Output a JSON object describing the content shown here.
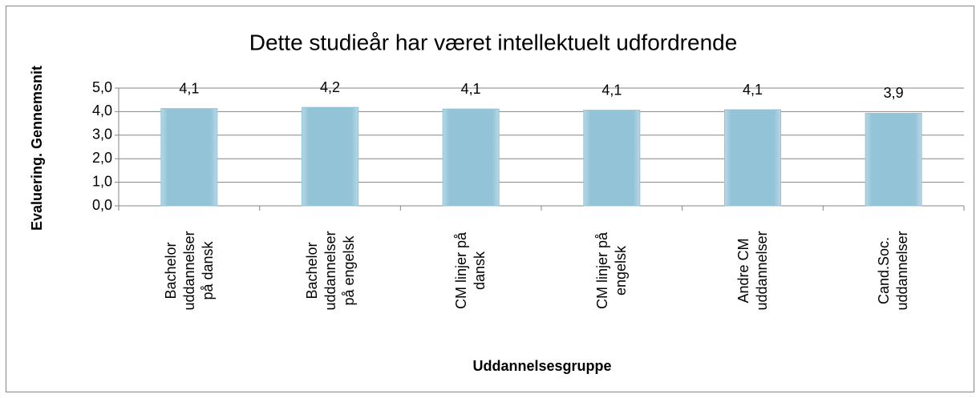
{
  "chart_data": {
    "type": "bar",
    "title": "Dette studieår har været intellektuelt udfordrende",
    "x_label": "Uddannelsesgruppe",
    "y_label": "Evaluering. Gennemsnit",
    "categories": [
      "Bachelor\nuddannelser\npå dansk",
      "Bachelor\nuddannelser\npå engelsk",
      "CM linjer på\ndansk",
      "CM linjer på\nengelsk",
      "Andre CM\nuddannelser",
      "Cand.Soc.\nuddannelser"
    ],
    "values": [
      4.13,
      4.18,
      4.11,
      4.06,
      4.08,
      3.93
    ],
    "value_labels": [
      "4,1",
      "4,2",
      "4,1",
      "4,1",
      "4,1",
      "3,9"
    ],
    "color": "#93c3d7",
    "ylim": [
      0,
      5
    ],
    "yticks": [
      {
        "value": 0,
        "label": "0,0"
      },
      {
        "value": 1,
        "label": "1,0"
      },
      {
        "value": 2,
        "label": "2,0"
      },
      {
        "value": 3,
        "label": "3,0"
      },
      {
        "value": 4,
        "label": "4,0"
      },
      {
        "value": 5,
        "label": "5,0"
      }
    ],
    "grid": true
  }
}
